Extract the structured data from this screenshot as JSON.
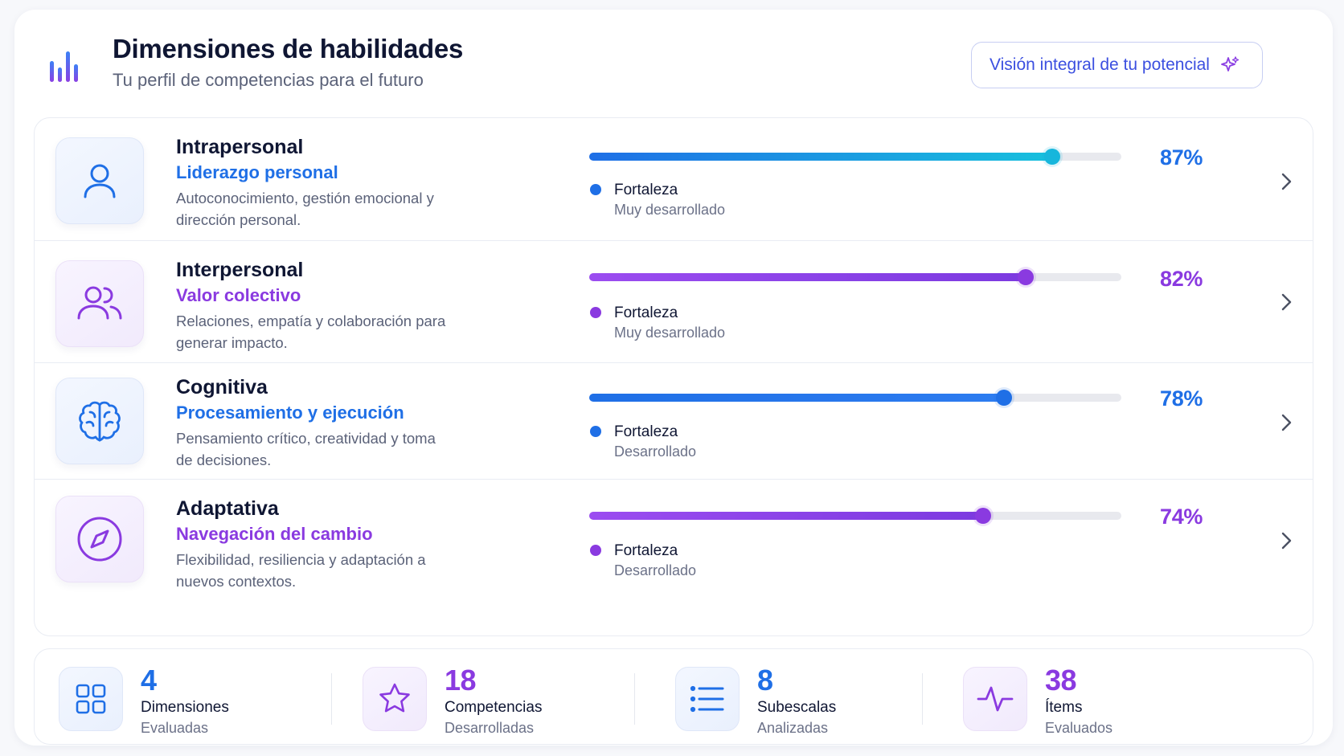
{
  "header": {
    "title": "Dimensiones de habilidades",
    "subtitle": "Tu perfil de competencias para el futuro",
    "action_label": "Visión integral de tu potencial"
  },
  "colors": {
    "blue": "#1f6fe6",
    "purple": "#8a3ae0",
    "cyan": "#17c0dd"
  },
  "dimensions": [
    {
      "name": "Intrapersonal",
      "tagline": "Liderazgo personal",
      "description": "Autoconocimiento, gestión emocional y dirección personal.",
      "icon": "user-icon",
      "value": 87,
      "percent_label": "87%",
      "level": "Fortaleza",
      "level_detail": "Muy desarrollado",
      "accent": "blue"
    },
    {
      "name": "Interpersonal",
      "tagline": "Valor colectivo",
      "description": "Relaciones, empatía y colaboración para generar impacto.",
      "icon": "users-icon",
      "value": 82,
      "percent_label": "82%",
      "level": "Fortaleza",
      "level_detail": "Muy desarrollado",
      "accent": "purple"
    },
    {
      "name": "Cognitiva",
      "tagline": "Procesamiento y ejecución",
      "description": "Pensamiento crítico, creatividad y toma de decisiones.",
      "icon": "brain-icon",
      "value": 78,
      "percent_label": "78%",
      "level": "Fortaleza",
      "level_detail": "Desarrollado",
      "accent": "blue"
    },
    {
      "name": "Adaptativa",
      "tagline": "Navegación del cambio",
      "description": "Flexibilidad, resiliencia y adaptación a nuevos contextos.",
      "icon": "compass-icon",
      "value": 74,
      "percent_label": "74%",
      "level": "Fortaleza",
      "level_detail": "Desarrollado",
      "accent": "purple"
    }
  ],
  "stats": [
    {
      "value": "4",
      "label": "Dimensiones",
      "sublabel": "Evaluadas",
      "icon": "grid-icon",
      "accent": "blue"
    },
    {
      "value": "18",
      "label": "Competencias",
      "sublabel": "Desarrolladas",
      "icon": "star-icon",
      "accent": "purple"
    },
    {
      "value": "8",
      "label": "Subescalas",
      "sublabel": "Analizadas",
      "icon": "list-icon",
      "accent": "blue"
    },
    {
      "value": "38",
      "label": "Ítems",
      "sublabel": "Evaluados",
      "icon": "activity-icon",
      "accent": "purple"
    }
  ]
}
